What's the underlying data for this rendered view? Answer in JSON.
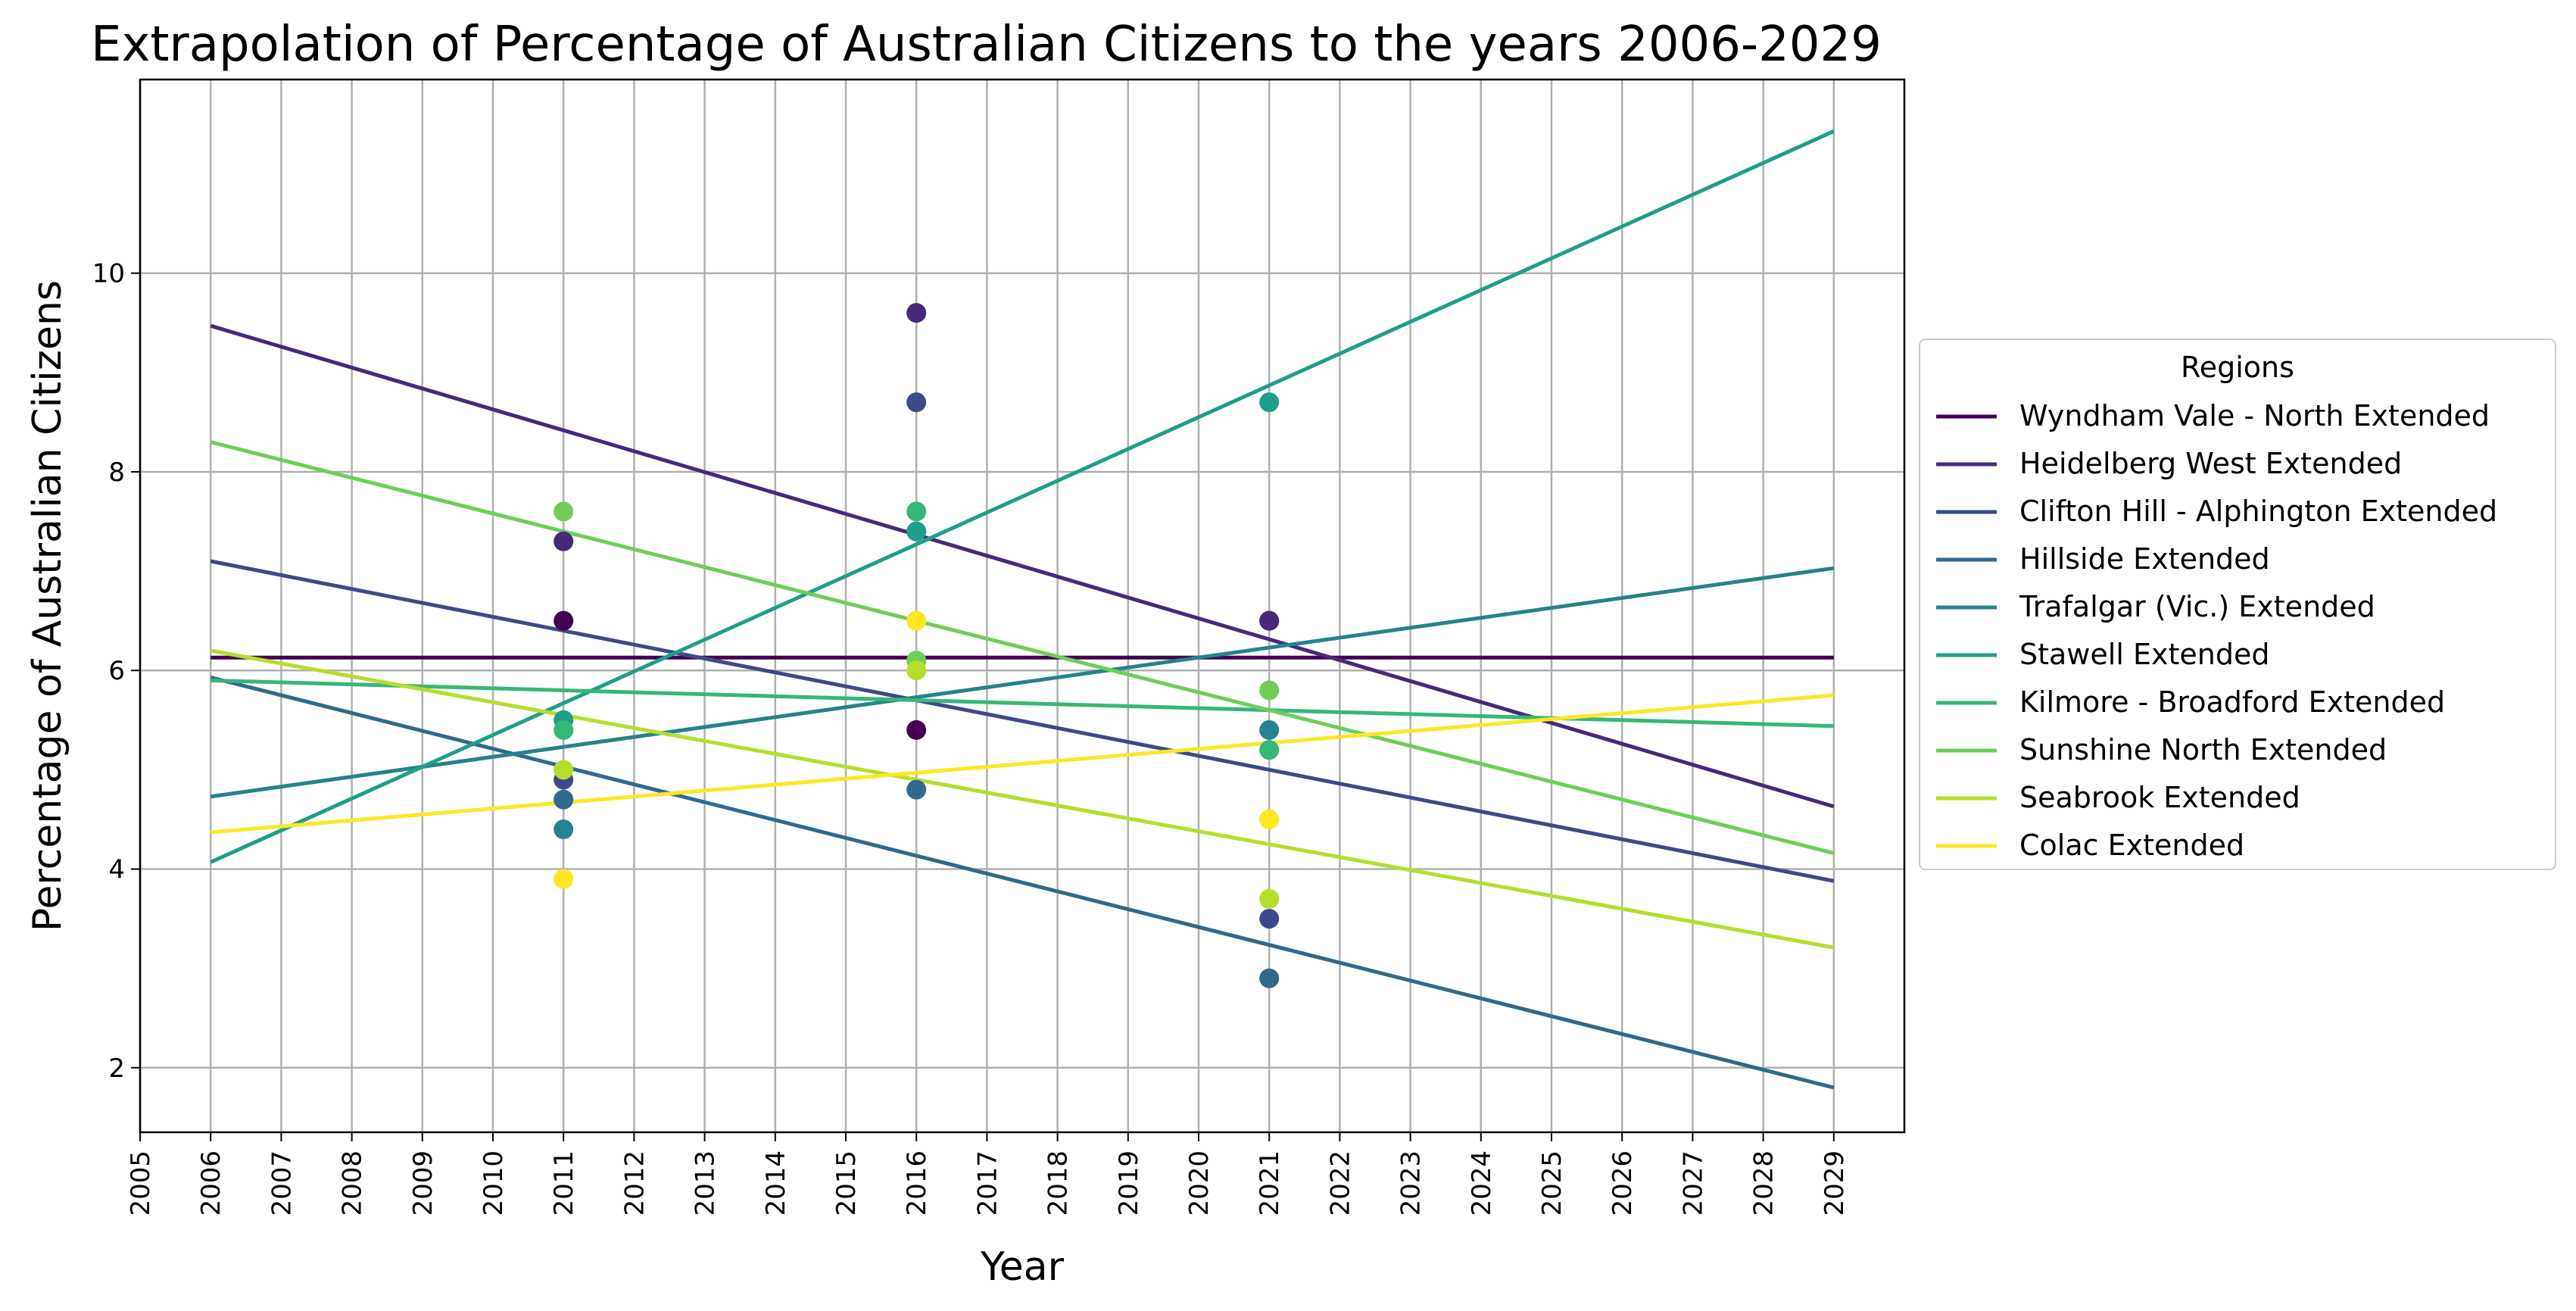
{
  "chart_data": {
    "type": "line",
    "title": "Extrapolation of Percentage of Australian Citizens to the years 2006-2029",
    "xlabel": "Year",
    "ylabel": "Percentage of Australian Citizens",
    "xlim": [
      2005,
      2030
    ],
    "ylim": [
      1.35,
      11.95
    ],
    "xticks": [
      2005,
      2006,
      2007,
      2008,
      2009,
      2010,
      2011,
      2012,
      2013,
      2014,
      2015,
      2016,
      2017,
      2018,
      2019,
      2020,
      2021,
      2022,
      2023,
      2024,
      2025,
      2026,
      2027,
      2028,
      2029
    ],
    "yticks": [
      2,
      4,
      6,
      8,
      10
    ],
    "grid": true,
    "legend": {
      "title": "Regions",
      "placement": "outside-right"
    },
    "series": [
      {
        "name": "Wyndham Vale - North Extended",
        "color": "#440154",
        "line": [
          [
            2006,
            6.13
          ],
          [
            2029,
            6.13
          ]
        ],
        "points": [
          [
            2011,
            6.5
          ],
          [
            2016,
            5.4
          ],
          [
            2021,
            6.5
          ]
        ]
      },
      {
        "name": "Heidelberg West Extended",
        "color": "#482878",
        "line": [
          [
            2006,
            9.47
          ],
          [
            2029,
            4.63
          ]
        ],
        "points": [
          [
            2011,
            7.3
          ],
          [
            2016,
            9.6
          ],
          [
            2021,
            6.5
          ]
        ]
      },
      {
        "name": "Clifton Hill - Alphington Extended",
        "color": "#3e4989",
        "line": [
          [
            2006,
            7.1
          ],
          [
            2029,
            3.88
          ]
        ],
        "points": [
          [
            2011,
            4.9
          ],
          [
            2016,
            8.7
          ],
          [
            2021,
            3.5
          ]
        ]
      },
      {
        "name": "Hillside Extended",
        "color": "#31688e",
        "line": [
          [
            2006,
            5.93
          ],
          [
            2029,
            1.8
          ]
        ],
        "points": [
          [
            2011,
            4.7
          ],
          [
            2016,
            4.8
          ],
          [
            2021,
            2.9
          ]
        ]
      },
      {
        "name": "Trafalgar (Vic.) Extended",
        "color": "#26828e",
        "line": [
          [
            2006,
            4.73
          ],
          [
            2029,
            7.03
          ]
        ],
        "points": [
          [
            2011,
            4.4
          ],
          [
            2016,
            7.4
          ],
          [
            2021,
            5.4
          ]
        ]
      },
      {
        "name": "Stawell Extended",
        "color": "#1f9e89",
        "line": [
          [
            2006,
            4.07
          ],
          [
            2029,
            11.43
          ]
        ],
        "points": [
          [
            2011,
            5.5
          ],
          [
            2016,
            7.4
          ],
          [
            2021,
            8.7
          ]
        ]
      },
      {
        "name": "Kilmore - Broadford Extended",
        "color": "#35b779",
        "line": [
          [
            2006,
            5.9
          ],
          [
            2029,
            5.44
          ]
        ],
        "points": [
          [
            2011,
            5.4
          ],
          [
            2016,
            7.6
          ],
          [
            2021,
            5.2
          ]
        ]
      },
      {
        "name": "Sunshine North Extended",
        "color": "#6ece58",
        "line": [
          [
            2006,
            8.3
          ],
          [
            2029,
            4.16
          ]
        ],
        "points": [
          [
            2011,
            7.6
          ],
          [
            2016,
            6.1
          ],
          [
            2021,
            5.8
          ]
        ]
      },
      {
        "name": "Seabrook Extended",
        "color": "#b5de2b",
        "line": [
          [
            2006,
            6.2
          ],
          [
            2029,
            3.21
          ]
        ],
        "points": [
          [
            2011,
            5.0
          ],
          [
            2016,
            6.0
          ],
          [
            2021,
            3.7
          ]
        ]
      },
      {
        "name": "Colac Extended",
        "color": "#fde725",
        "line": [
          [
            2006,
            4.37
          ],
          [
            2029,
            5.75
          ]
        ],
        "points": [
          [
            2011,
            3.9
          ],
          [
            2016,
            6.5
          ],
          [
            2021,
            4.5
          ]
        ]
      }
    ]
  }
}
